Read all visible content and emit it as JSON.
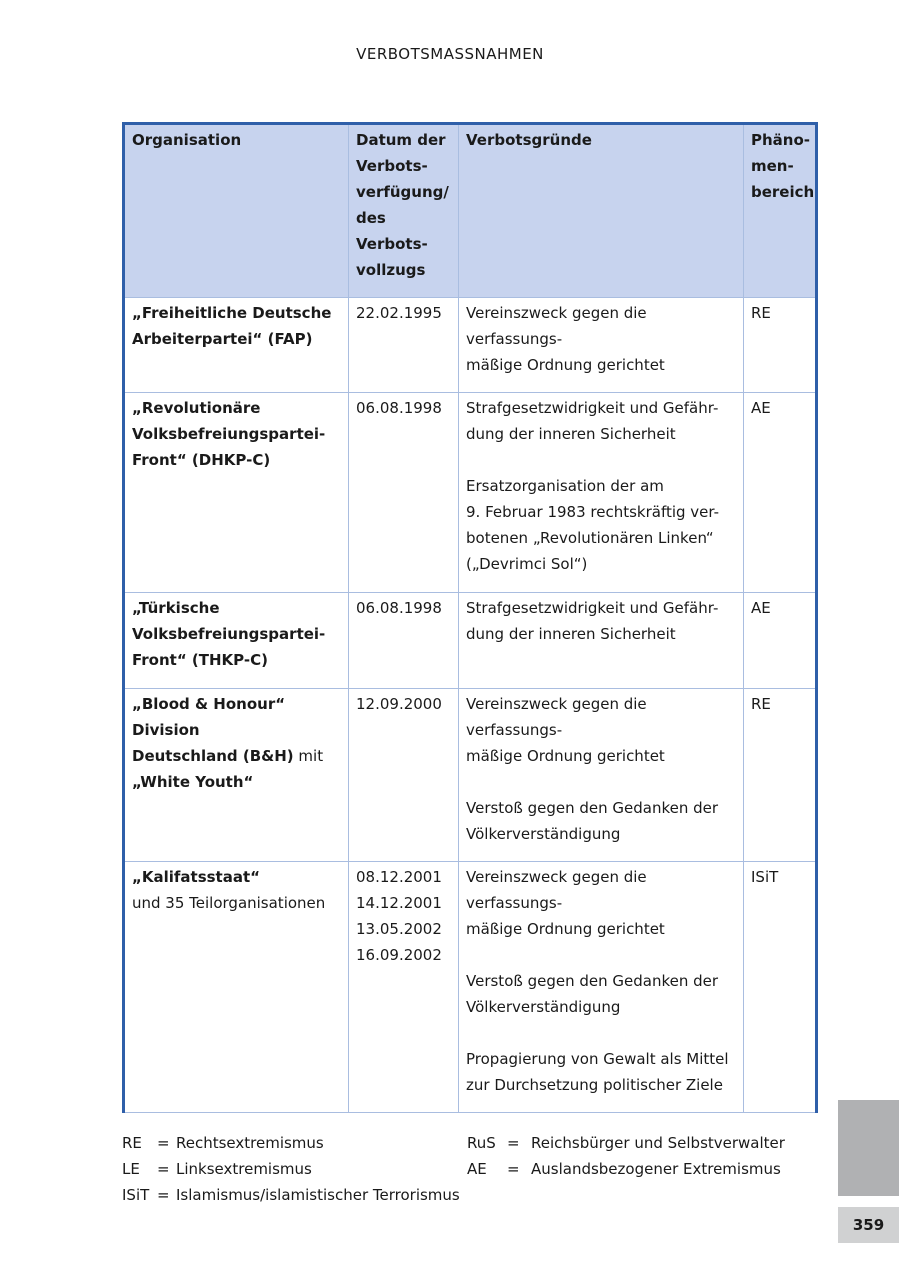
{
  "running_head": "VERBOTSMASSNAHMEN",
  "table": {
    "headers": [
      "Organisation",
      "Datum der\nVerbots-\nverfügung/\ndes Verbots-\nvollzugs",
      "Verbotsgründe",
      "Phäno-\nmen-\nbereich"
    ],
    "rows": [
      {
        "org_bold": "„Freiheitliche Deutsche\nArbeiterpartei“ (FAP)",
        "org_rest": "",
        "date": "22.02.1995",
        "reasons": "Vereinszweck gegen die verfassungs-\nmäßige Ordnung gerichtet",
        "area": "RE"
      },
      {
        "org_bold": "„Revolutionäre\nVolksbefreiungspartei-\nFront“ (DHKP-C)",
        "org_rest": "",
        "date": "06.08.1998",
        "reasons": "Strafgesetzwidrigkeit und Gefähr-\ndung der inneren Sicherheit\n\nErsatzorganisation der am\n9. Februar 1983 rechtskräftig ver-\nbotenen „Revolutionären Linken“\n(„Devrimci Sol“)",
        "area": "AE"
      },
      {
        "org_bold": "„Türkische\nVolksbefreiungspartei-\nFront“ (THKP-C)",
        "org_rest": "",
        "date": "06.08.1998",
        "reasons": "Strafgesetzwidrigkeit und Gefähr-\ndung der inneren Sicherheit",
        "area": "AE"
      },
      {
        "org_bold": "„Blood & Honour“ Division\nDeutschland (B&H)",
        "org_rest": " mit",
        "org_bold2": "\n„White Youth“",
        "date": "12.09.2000",
        "reasons": "Vereinszweck gegen die verfassungs-\nmäßige Ordnung gerichtet\n\nVerstoß gegen den Gedanken der\nVölkerverständigung",
        "area": "RE"
      },
      {
        "org_bold": "„Kalifatsstaat“",
        "org_rest": "\nund 35 Teilorganisationen",
        "date": "08.12.2001\n14.12.2001\n13.05.2002\n16.09.2002",
        "reasons": "Vereinszweck gegen die verfassungs-\nmäßige Ordnung gerichtet\n\nVerstoß gegen den Gedanken der\nVölkerverständigung\n\nPropagierung von Gewalt als Mittel\nzur Durchsetzung politischer Ziele",
        "area": "ISiT"
      }
    ]
  },
  "legend": {
    "left": [
      {
        "abbr": "RE",
        "eq": "=",
        "text": "Rechtsextremismus"
      },
      {
        "abbr": "LE",
        "eq": "=",
        "text": "Linksextremismus"
      },
      {
        "abbr": "ISiT",
        "eq": "=",
        "text": "Islamismus/islamistischer Terrorismus"
      }
    ],
    "right": [
      {
        "abbr": "RuS",
        "eq": "=",
        "text": "Reichsbürger und Selbstverwalter"
      },
      {
        "abbr": "AE",
        "eq": "=",
        "text": "Auslandsbezogener Extremismus"
      }
    ]
  },
  "page_number": "359",
  "colors": {
    "header_bg": "#c7d3ee",
    "border_accent": "#2f5fa9",
    "cell_border": "#a9bde0"
  }
}
